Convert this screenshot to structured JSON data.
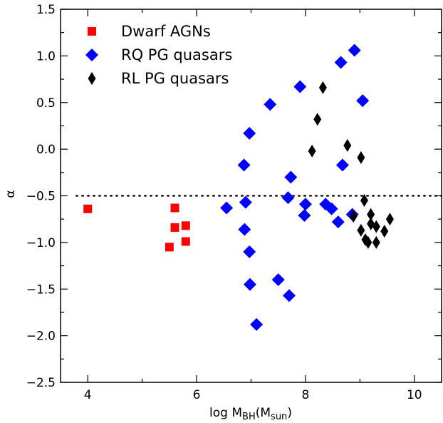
{
  "chart_data": {
    "type": "scatter",
    "xlabel": {
      "main": "log M",
      "sub1": "BH",
      "mid": "(M",
      "sub2": "sun",
      "end": ")"
    },
    "ylabel": "α",
    "xlim": [
      3.5,
      10.5
    ],
    "ylim": [
      -2.5,
      1.5
    ],
    "x_ticks": [
      4,
      6,
      8,
      10
    ],
    "x_tick_labels": [
      "4",
      "6",
      "8",
      "10"
    ],
    "y_ticks": [
      1.5,
      1.0,
      0.5,
      0.0,
      -0.5,
      -1.0,
      -1.5,
      -2.0,
      -2.5
    ],
    "y_tick_labels": [
      "1.5",
      "1.0",
      "0.5",
      "0.0",
      "−0.5",
      "−1.0",
      "−1.5",
      "−2.0",
      "−2.5"
    ],
    "reference_line": {
      "y": -0.5,
      "style": "dotted",
      "xrange": [
        3.5,
        10.5
      ]
    },
    "legend_position": "top-left",
    "series": [
      {
        "name": "Dwarf AGNs",
        "marker": "square",
        "color": "#ff0000",
        "points": [
          [
            4.0,
            -0.64
          ],
          [
            5.6,
            -0.63
          ],
          [
            5.6,
            -0.84
          ],
          [
            5.8,
            -0.82
          ],
          [
            5.5,
            -1.05
          ],
          [
            5.8,
            -0.99
          ]
        ]
      },
      {
        "name": "RQ PG quasars",
        "marker": "diamond",
        "color": "#0000ff",
        "points": [
          [
            8.9,
            1.06
          ],
          [
            8.65,
            0.93
          ],
          [
            7.9,
            0.67
          ],
          [
            9.05,
            0.52
          ],
          [
            7.35,
            0.48
          ],
          [
            6.97,
            0.17
          ],
          [
            6.87,
            -0.17
          ],
          [
            8.68,
            -0.17
          ],
          [
            7.73,
            -0.3
          ],
          [
            7.68,
            -0.52
          ],
          [
            6.55,
            -0.63
          ],
          [
            6.9,
            -0.57
          ],
          [
            8.0,
            -0.59
          ],
          [
            8.37,
            -0.59
          ],
          [
            8.48,
            -0.64
          ],
          [
            7.98,
            -0.71
          ],
          [
            8.86,
            -0.7
          ],
          [
            8.6,
            -0.78
          ],
          [
            6.88,
            -0.86
          ],
          [
            6.97,
            -1.1
          ],
          [
            7.5,
            -1.4
          ],
          [
            6.98,
            -1.45
          ],
          [
            7.7,
            -1.57
          ],
          [
            7.1,
            -1.88
          ]
        ]
      },
      {
        "name": "RL PG quasars",
        "marker": "thin_diamond",
        "color": "#000000",
        "points": [
          [
            8.32,
            0.66
          ],
          [
            8.22,
            0.32
          ],
          [
            8.12,
            -0.02
          ],
          [
            8.77,
            0.04
          ],
          [
            9.02,
            -0.09
          ],
          [
            9.08,
            -0.55
          ],
          [
            8.88,
            -0.72
          ],
          [
            9.2,
            -0.7
          ],
          [
            9.55,
            -0.75
          ],
          [
            9.2,
            -0.8
          ],
          [
            9.02,
            -0.87
          ],
          [
            9.3,
            -0.83
          ],
          [
            9.45,
            -0.88
          ],
          [
            9.1,
            -0.97
          ],
          [
            9.15,
            -1.0
          ],
          [
            9.3,
            -1.0
          ]
        ]
      }
    ]
  }
}
